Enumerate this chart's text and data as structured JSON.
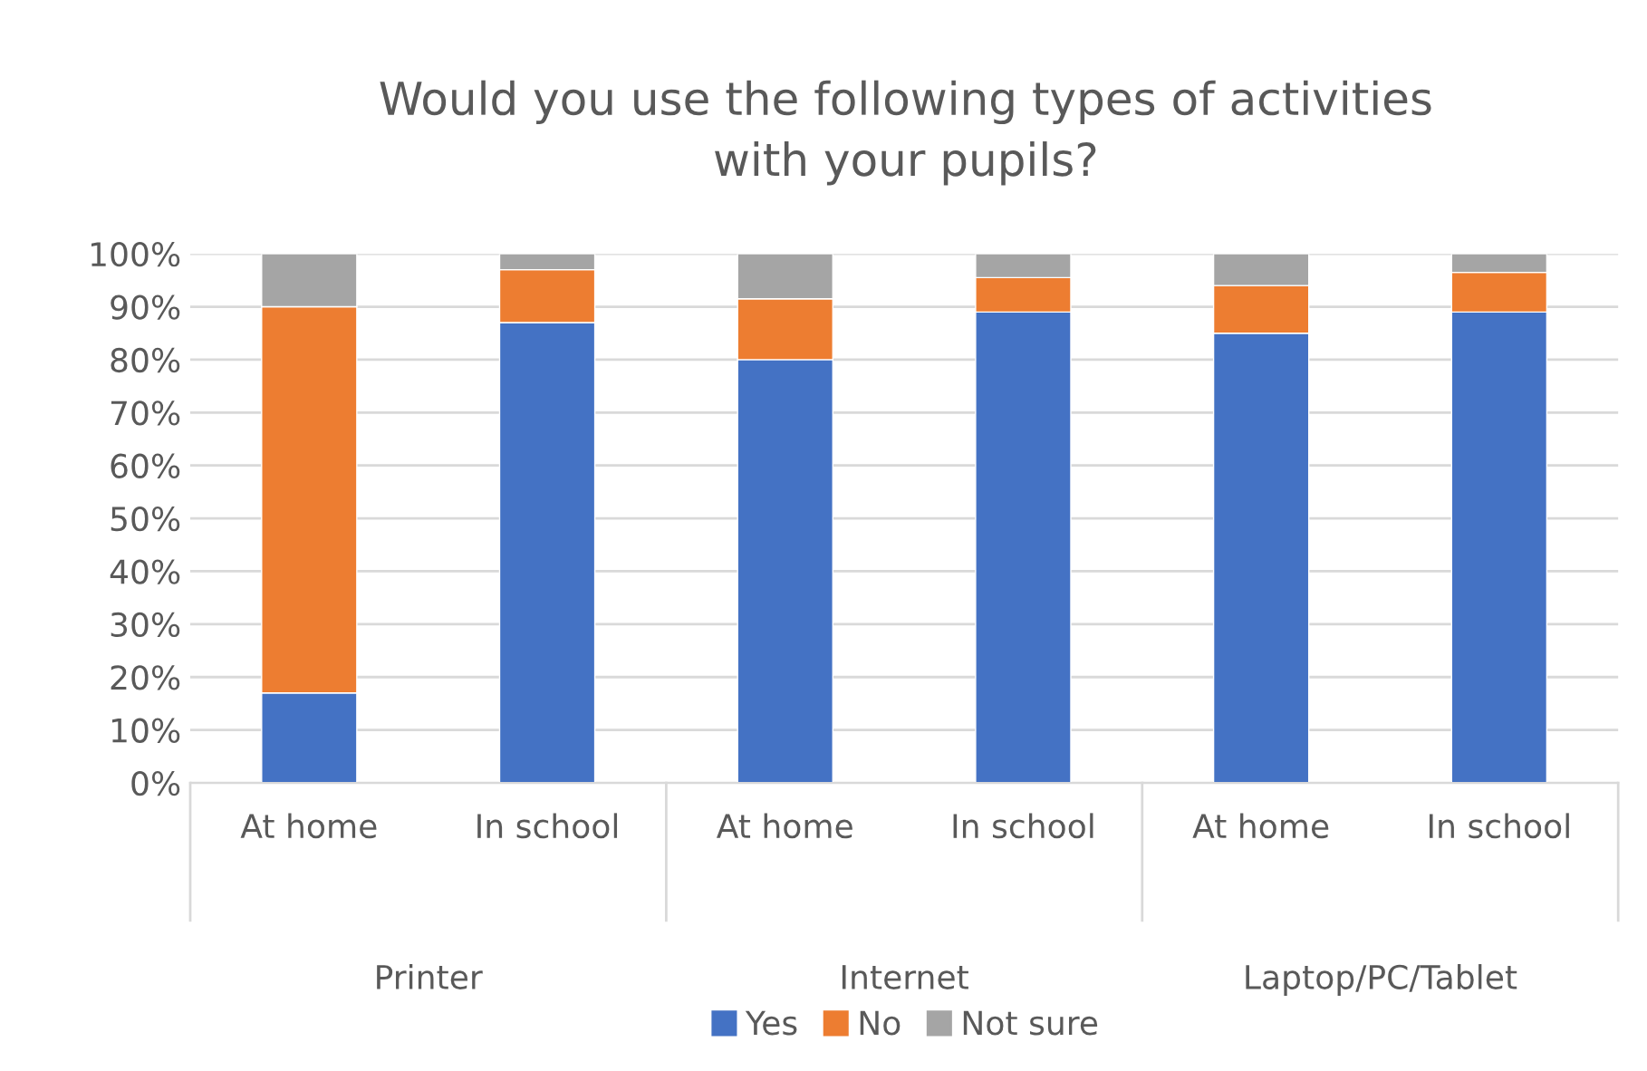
{
  "chart_data": {
    "type": "bar",
    "stacked": true,
    "title": "Would you use the following types of activities\nwith your pupils?",
    "categories": [
      "At home",
      "In school",
      "At home",
      "In school",
      "At home",
      "In school"
    ],
    "annotations": [
      "Printer",
      "Internet",
      "Laptop/PC/Tablet"
    ],
    "series": [
      {
        "name": "Yes",
        "color": "#4472c4",
        "values": [
          17,
          87,
          80,
          89,
          85,
          89
        ]
      },
      {
        "name": "No",
        "color": "#ed7d31",
        "values": [
          73,
          10,
          11.5,
          6.5,
          9,
          7.5
        ]
      },
      {
        "name": "Not sure",
        "color": "#a5a5a5",
        "values": [
          10,
          3,
          8.5,
          4.5,
          6,
          3.5
        ]
      }
    ],
    "ylim": [
      0,
      100
    ],
    "yticks": [
      {
        "value": 0,
        "label": "0%"
      },
      {
        "value": 10,
        "label": "10%"
      },
      {
        "value": 20,
        "label": "20%"
      },
      {
        "value": 30,
        "label": "30%"
      },
      {
        "value": 40,
        "label": "40%"
      },
      {
        "value": 50,
        "label": "50%"
      },
      {
        "value": 60,
        "label": "60%"
      },
      {
        "value": 70,
        "label": "70%"
      },
      {
        "value": 80,
        "label": "80%"
      },
      {
        "value": 90,
        "label": "90%"
      },
      {
        "value": 100,
        "label": "100%"
      }
    ],
    "grid": "y",
    "legend": "bottom"
  }
}
